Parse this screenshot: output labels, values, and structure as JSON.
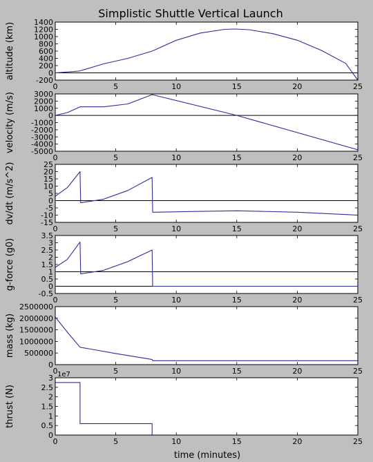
{
  "chart_data": {
    "type": "line",
    "title": "Simplistic Shuttle Vertical Launch",
    "xlabel": "time (minutes)",
    "xlim": [
      0,
      25
    ],
    "x_ticks": [
      0,
      5,
      10,
      15,
      20,
      25
    ],
    "line_color": "#2c2c9a",
    "zero_line_color": "#000000",
    "background": "#bfbfbf",
    "panel_color": "#ffffff",
    "panels": [
      {
        "ylabel": "altitude (km)",
        "ylim": [
          -200,
          1400
        ],
        "y_ticks": [
          -200,
          0,
          200,
          400,
          600,
          800,
          1000,
          1200,
          1400
        ],
        "zero_line": true,
        "x": [
          0,
          2,
          4,
          6,
          8,
          10,
          12,
          14,
          14.8,
          16,
          18,
          20,
          22,
          24,
          25
        ],
        "y": [
          0,
          50,
          250,
          400,
          600,
          900,
          1100,
          1200,
          1210,
          1190,
          1080,
          900,
          620,
          260,
          -200
        ]
      },
      {
        "ylabel": "velocity (m/s)",
        "ylim": [
          -5000,
          3000
        ],
        "y_ticks": [
          -5000,
          -4000,
          -3000,
          -2000,
          -1000,
          0,
          1000,
          2000,
          3000
        ],
        "zero_line": true,
        "x": [
          0,
          1,
          2.05,
          4,
          6,
          8,
          15,
          25
        ],
        "y": [
          0,
          400,
          1200,
          1200,
          1600,
          2900,
          0,
          -4800
        ]
      },
      {
        "ylabel": "dv/dt (m/s^2)",
        "ylim": [
          -15,
          25
        ],
        "y_ticks": [
          -15,
          -10,
          -5,
          0,
          5,
          10,
          15,
          20,
          25
        ],
        "zero_line": true,
        "x": [
          0,
          1,
          2.05,
          2.1,
          4,
          6,
          8,
          8.05,
          15,
          20,
          25
        ],
        "y": [
          3,
          9,
          20,
          -1.5,
          1,
          7,
          16,
          -8,
          -7,
          -8,
          -10
        ]
      },
      {
        "ylabel": "g-force (g0)",
        "ylim": [
          -0.5,
          3.5
        ],
        "y_ticks": [
          -0.5,
          0.0,
          0.5,
          1.0,
          1.5,
          2.0,
          2.5,
          3.0,
          3.5
        ],
        "zero_line": true,
        "ref_line": 1.0,
        "x": [
          0,
          1,
          2.05,
          2.1,
          4,
          6,
          8,
          8.05,
          25
        ],
        "y": [
          1.3,
          1.85,
          3.05,
          0.85,
          1.1,
          1.7,
          2.5,
          0,
          0
        ]
      },
      {
        "ylabel": "mass (kg)",
        "ylim": [
          0,
          2500000
        ],
        "y_ticks": [
          0,
          500000,
          1000000,
          1500000,
          2000000,
          2500000
        ],
        "zero_line": false,
        "x": [
          0,
          1,
          2.05,
          5,
          8,
          8.05,
          25
        ],
        "y": [
          2050000,
          1400000,
          750000,
          480000,
          220000,
          170000,
          170000
        ]
      },
      {
        "ylabel": "thrust (N)",
        "ylim": [
          0,
          3.0
        ],
        "y_ticks": [
          0.0,
          0.5,
          1.0,
          1.5,
          2.0,
          2.5,
          3.0
        ],
        "offset_text": "1e7",
        "zero_line": false,
        "x": [
          0,
          2.05,
          2.05,
          8,
          8,
          25
        ],
        "y": [
          2.75,
          2.75,
          0.6,
          0.6,
          0,
          0
        ]
      }
    ]
  }
}
